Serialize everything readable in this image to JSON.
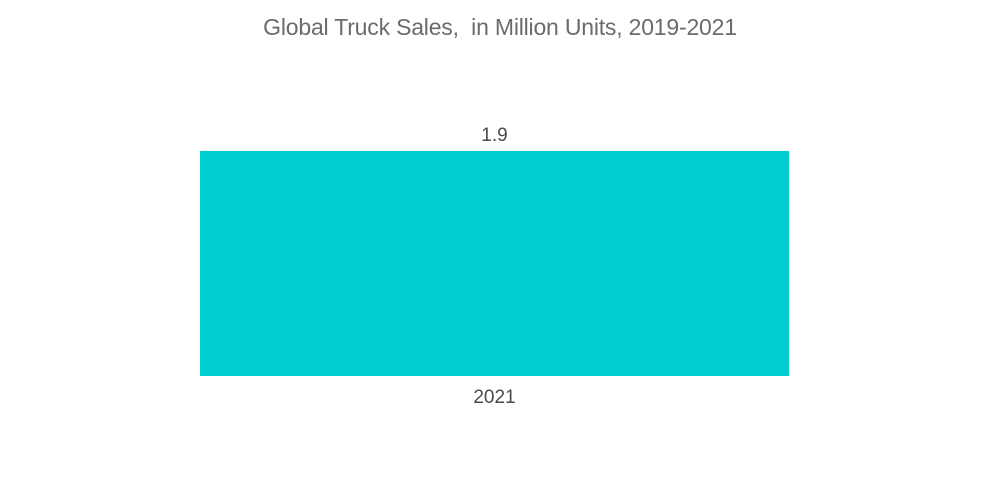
{
  "chart_data": {
    "type": "bar",
    "title": "Global Truck Sales,  in Million Units, 2019-2021",
    "categories": [
      "2021"
    ],
    "values": [
      1.9
    ],
    "data_labels": [
      "1.9"
    ],
    "xlabel": "",
    "ylabel": "",
    "ylim": [
      0,
      1.9
    ],
    "grid": false,
    "legend": "none",
    "colors": {
      "bar": "#00ced1"
    }
  }
}
